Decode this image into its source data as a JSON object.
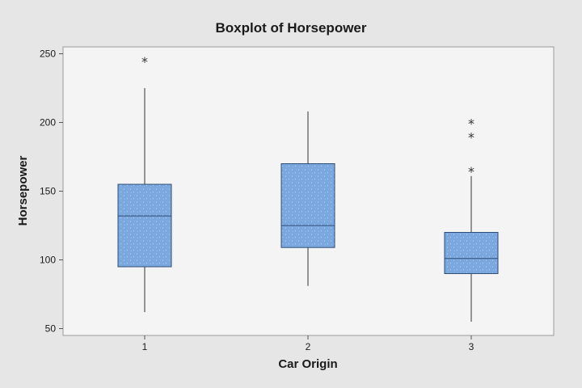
{
  "chart_data": {
    "type": "boxplot",
    "title": "Boxplot of Horsepower",
    "xlabel": "Car Origin",
    "ylabel": "Horsepower",
    "categories": [
      "1",
      "2",
      "3"
    ],
    "ylim": [
      45,
      255
    ],
    "yticks": [
      50,
      100,
      150,
      200,
      250
    ],
    "boxes": [
      {
        "category": "1",
        "whisker_low": 62,
        "q1": 95,
        "median": 132,
        "q3": 155,
        "whisker_high": 225,
        "outliers": [
          245
        ]
      },
      {
        "category": "2",
        "whisker_low": 81,
        "q1": 109,
        "median": 125,
        "q3": 170,
        "whisker_high": 208,
        "outliers": []
      },
      {
        "category": "3",
        "whisker_low": 55,
        "q1": 90,
        "median": 101,
        "q3": 120,
        "whisker_high": 161,
        "outliers": [
          165,
          190,
          200
        ]
      }
    ],
    "grid": false,
    "colors": {
      "box_fill": "#7aa7dd",
      "box_stroke": "#2d4e7a",
      "plot_bg": "#f4f4f4",
      "frame_bg": "#e6e6e6"
    }
  }
}
